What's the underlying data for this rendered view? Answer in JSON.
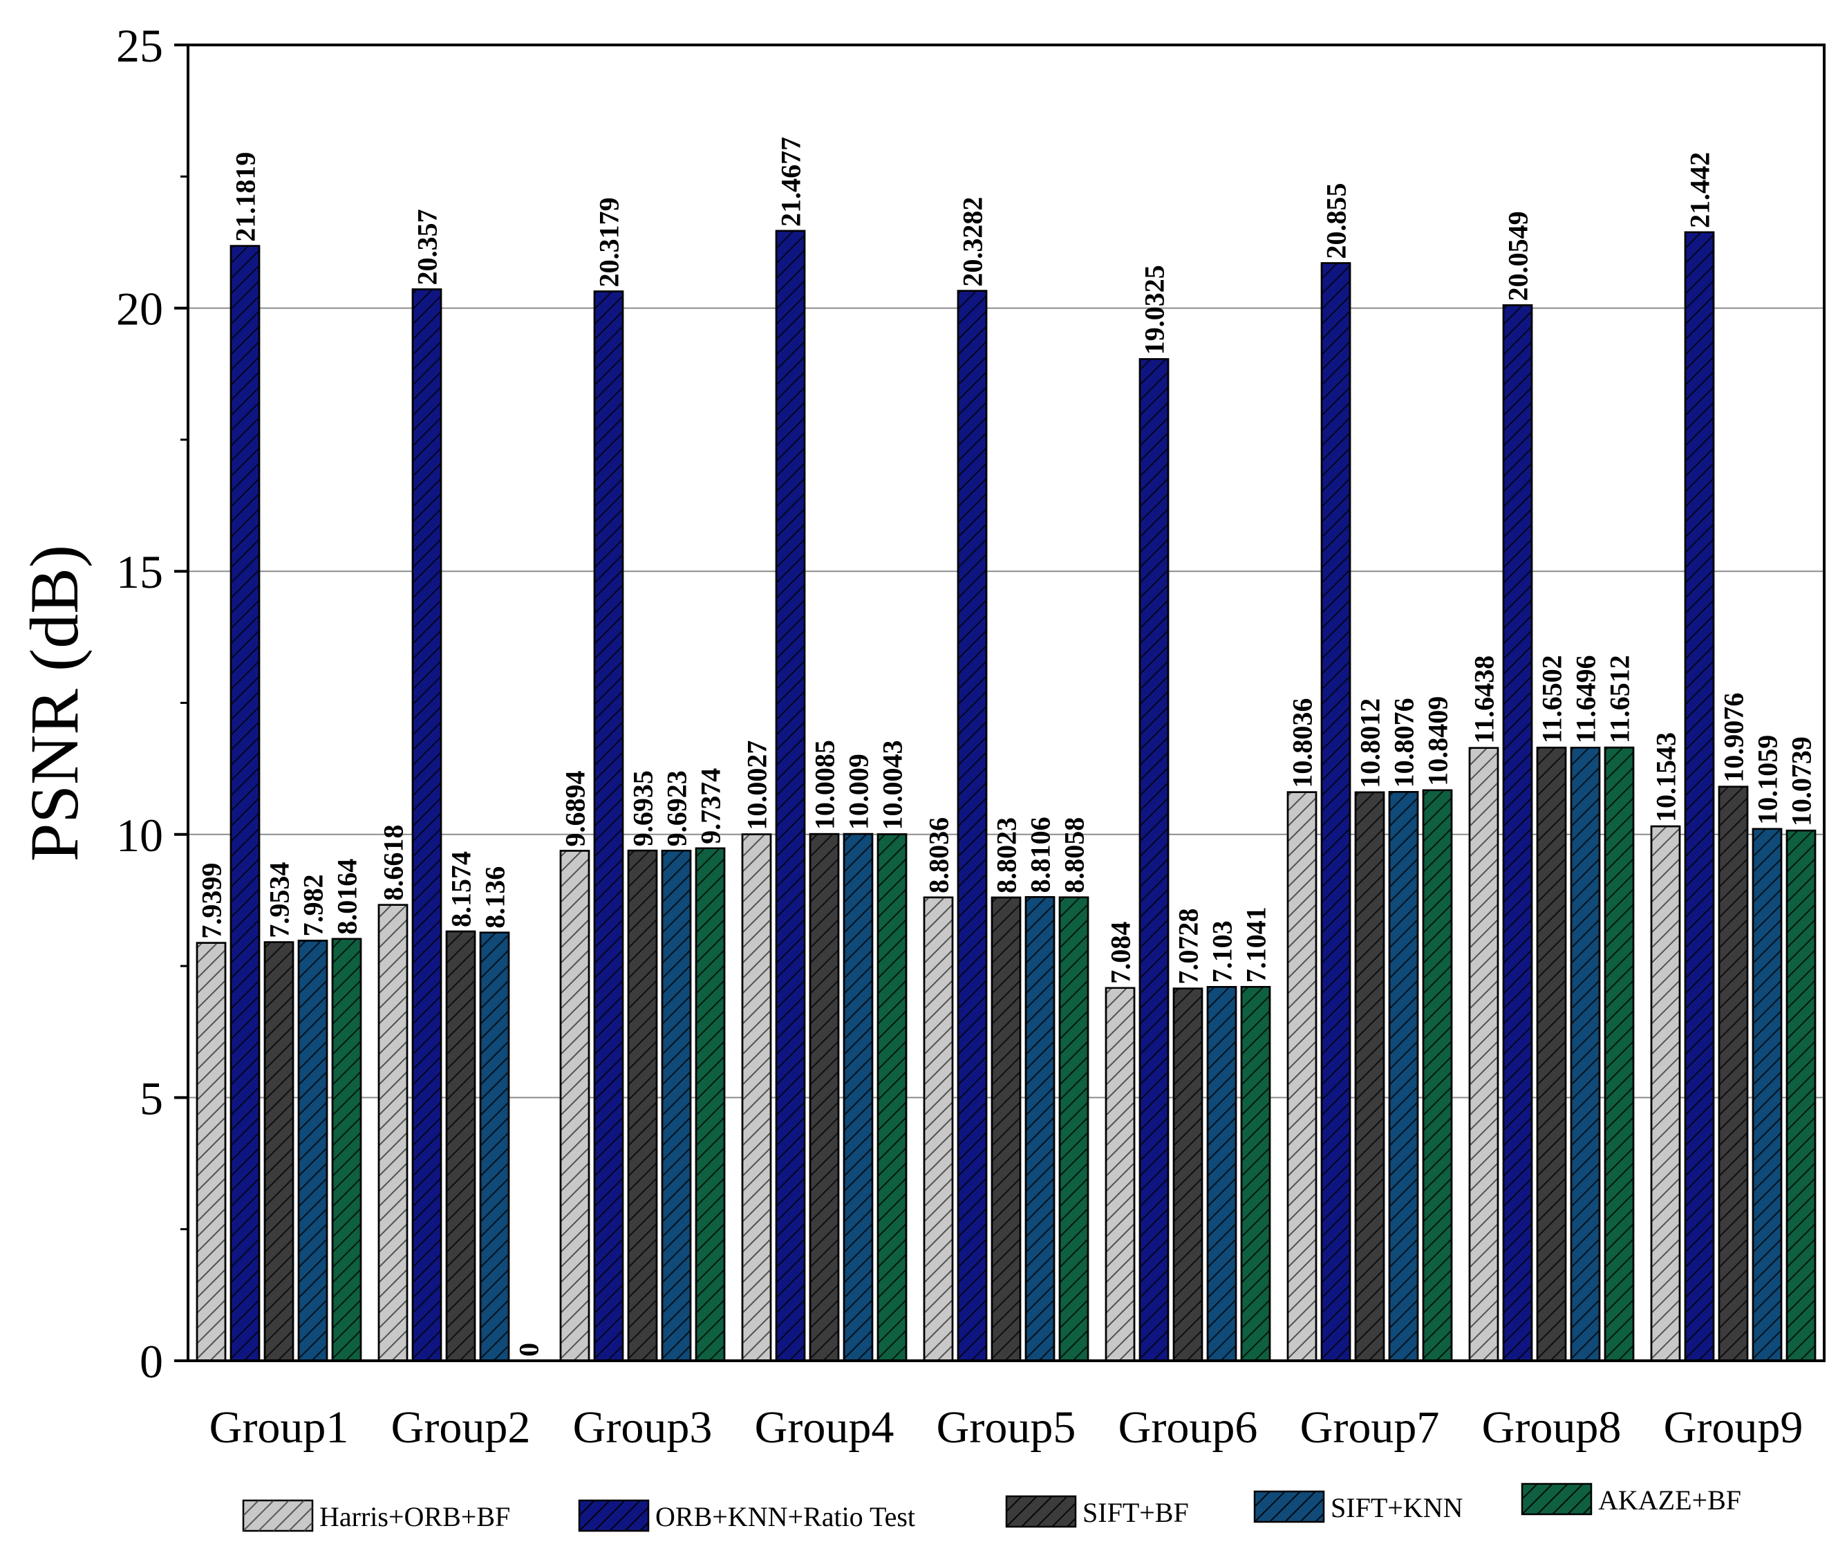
{
  "chart_data": {
    "type": "bar",
    "title": "",
    "xlabel": "",
    "ylabel": "PSNR (dB)",
    "ylim": [
      0,
      25
    ],
    "yticks": [
      0,
      5,
      10,
      15,
      20,
      25
    ],
    "grid": "horizontal",
    "legend_position": "bottom",
    "categories": [
      "Group1",
      "Group2",
      "Group3",
      "Group4",
      "Group5",
      "Group6",
      "Group7",
      "Group8",
      "Group9"
    ],
    "series": [
      {
        "name": "Harris+ORB+BF",
        "color": "#c8c8c8",
        "values": [
          7.9399,
          8.6618,
          9.6894,
          10.0027,
          8.8036,
          7.084,
          10.8036,
          11.6438,
          10.1543
        ],
        "labels": [
          "7.9399",
          "8.6618",
          "9.6894",
          "10.0027",
          "8.8036",
          "7.084",
          "10.8036",
          "11.6438",
          "10.1543"
        ]
      },
      {
        "name": "ORB+KNN+Ratio Test",
        "color": "#0f1580",
        "values": [
          21.1819,
          20.357,
          20.3179,
          21.4677,
          20.3282,
          19.0325,
          20.855,
          20.0549,
          21.442
        ],
        "labels": [
          "21.1819",
          "20.357",
          "20.3179",
          "21.4677",
          "20.3282",
          "19.0325",
          "20.855",
          "20.0549",
          "21.442"
        ]
      },
      {
        "name": "SIFT+BF",
        "color": "#3c3c3c",
        "values": [
          7.9534,
          8.1574,
          9.6935,
          10.0085,
          8.8023,
          7.0728,
          10.8012,
          11.6502,
          10.9076
        ],
        "labels": [
          "7.9534",
          "8.1574",
          "9.6935",
          "10.0085",
          "8.8023",
          "7.0728",
          "10.8012",
          "11.6502",
          "10.9076"
        ]
      },
      {
        "name": "SIFT+KNN",
        "color": "#0f4a78",
        "values": [
          7.982,
          8.136,
          9.6923,
          10.009,
          8.8106,
          7.103,
          10.8076,
          11.6496,
          10.1059
        ],
        "labels": [
          "7.982",
          "8.136",
          "9.6923",
          "10.009",
          "8.8106",
          "7.103",
          "10.8076",
          "11.6496",
          "10.1059"
        ]
      },
      {
        "name": "AKAZE+BF",
        "color": "#0e6040",
        "values": [
          8.0164,
          0,
          9.7374,
          10.0043,
          8.8058,
          7.1041,
          10.8409,
          11.6512,
          10.0739
        ],
        "labels": [
          "8.0164",
          "0",
          "9.7374",
          "10.0043",
          "8.8058",
          "7.1041",
          "10.8409",
          "11.6512",
          "10.0739"
        ]
      }
    ]
  }
}
